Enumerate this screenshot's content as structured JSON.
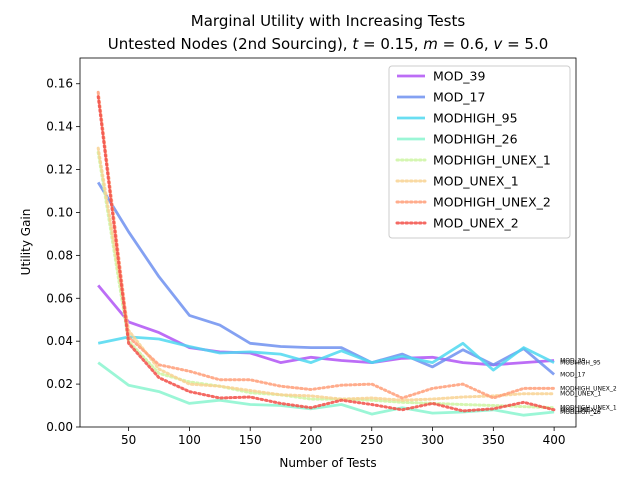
{
  "chart_data": {
    "type": "line",
    "title_line1": "Marginal Utility with Increasing Tests",
    "title_line2_prefix": "Untested Nodes (2nd Sourcing), ",
    "title_params": [
      {
        "sym": "t",
        "val": " = 0.15"
      },
      {
        "sym": "m",
        "val": " = 0.6"
      },
      {
        "sym": "v",
        "val": " = 5.0"
      }
    ],
    "xlabel": "Number of Tests",
    "ylabel": "Utility Gain",
    "xlim": [
      10,
      418
    ],
    "ylim": [
      0,
      0.172
    ],
    "xticks": [
      50,
      100,
      150,
      200,
      250,
      300,
      350,
      400
    ],
    "yticks": [
      0.0,
      0.02,
      0.04,
      0.06,
      0.08,
      0.1,
      0.12,
      0.14,
      0.16
    ],
    "x": [
      25,
      50,
      75,
      100,
      125,
      150,
      175,
      200,
      225,
      250,
      275,
      300,
      325,
      350,
      375,
      400
    ],
    "legend_position": "upper right",
    "series": [
      {
        "name": "MOD_39",
        "color": "#b054f5",
        "style": "solid",
        "values": [
          0.066,
          0.049,
          0.044,
          0.037,
          0.035,
          0.0345,
          0.03,
          0.0325,
          0.031,
          0.03,
          0.032,
          0.0325,
          0.03,
          0.029,
          0.03,
          0.031
        ]
      },
      {
        "name": "MOD_17",
        "color": "#6f91f0",
        "style": "solid",
        "values": [
          0.114,
          0.091,
          0.07,
          0.052,
          0.0475,
          0.039,
          0.0375,
          0.037,
          0.037,
          0.03,
          0.034,
          0.028,
          0.036,
          0.029,
          0.0365,
          0.0245
        ]
      },
      {
        "name": "MODHIGH_95",
        "color": "#4fd8f0",
        "style": "solid",
        "values": [
          0.039,
          0.042,
          0.041,
          0.0375,
          0.0345,
          0.035,
          0.034,
          0.03,
          0.0355,
          0.03,
          0.033,
          0.03,
          0.039,
          0.0265,
          0.037,
          0.03
        ]
      },
      {
        "name": "MODHIGH_26",
        "color": "#8af5cf",
        "style": "solid",
        "values": [
          0.03,
          0.0195,
          0.0165,
          0.011,
          0.0125,
          0.0105,
          0.01,
          0.0085,
          0.0105,
          0.006,
          0.009,
          0.0065,
          0.007,
          0.008,
          0.0055,
          0.007
        ]
      },
      {
        "name": "MODHIGH_UNEX_1",
        "color": "#cdf5a2",
        "style": "dotted",
        "values": [
          0.128,
          0.04,
          0.025,
          0.021,
          0.019,
          0.016,
          0.015,
          0.013,
          0.013,
          0.0125,
          0.0115,
          0.011,
          0.0105,
          0.01,
          0.0095,
          0.009
        ]
      },
      {
        "name": "MOD_UNEX_1",
        "color": "#f8d292",
        "style": "dotted",
        "values": [
          0.13,
          0.045,
          0.027,
          0.02,
          0.019,
          0.017,
          0.015,
          0.0145,
          0.013,
          0.0135,
          0.0125,
          0.013,
          0.014,
          0.0145,
          0.0155,
          0.0155
        ]
      },
      {
        "name": "MODHIGH_UNEX_2",
        "color": "#ff9e78",
        "style": "dotted",
        "values": [
          0.156,
          0.042,
          0.029,
          0.026,
          0.022,
          0.022,
          0.019,
          0.0175,
          0.0195,
          0.02,
          0.0135,
          0.018,
          0.02,
          0.0135,
          0.018,
          0.018
        ]
      },
      {
        "name": "MOD_UNEX_2",
        "color": "#f24f48",
        "style": "dotted",
        "values": [
          0.154,
          0.039,
          0.023,
          0.0165,
          0.0135,
          0.014,
          0.011,
          0.009,
          0.0125,
          0.0105,
          0.008,
          0.011,
          0.0075,
          0.0085,
          0.0115,
          0.008
        ]
      }
    ],
    "end_labels": [
      "MOD_39",
      "MOD_17",
      "MODHIGH_95",
      "MODHIGH_26",
      "MODHIGH_UNEX_1",
      "MOD_UNEX_1",
      "MODHIGH_UNEX_2",
      "MOD_UNEX_2"
    ]
  }
}
